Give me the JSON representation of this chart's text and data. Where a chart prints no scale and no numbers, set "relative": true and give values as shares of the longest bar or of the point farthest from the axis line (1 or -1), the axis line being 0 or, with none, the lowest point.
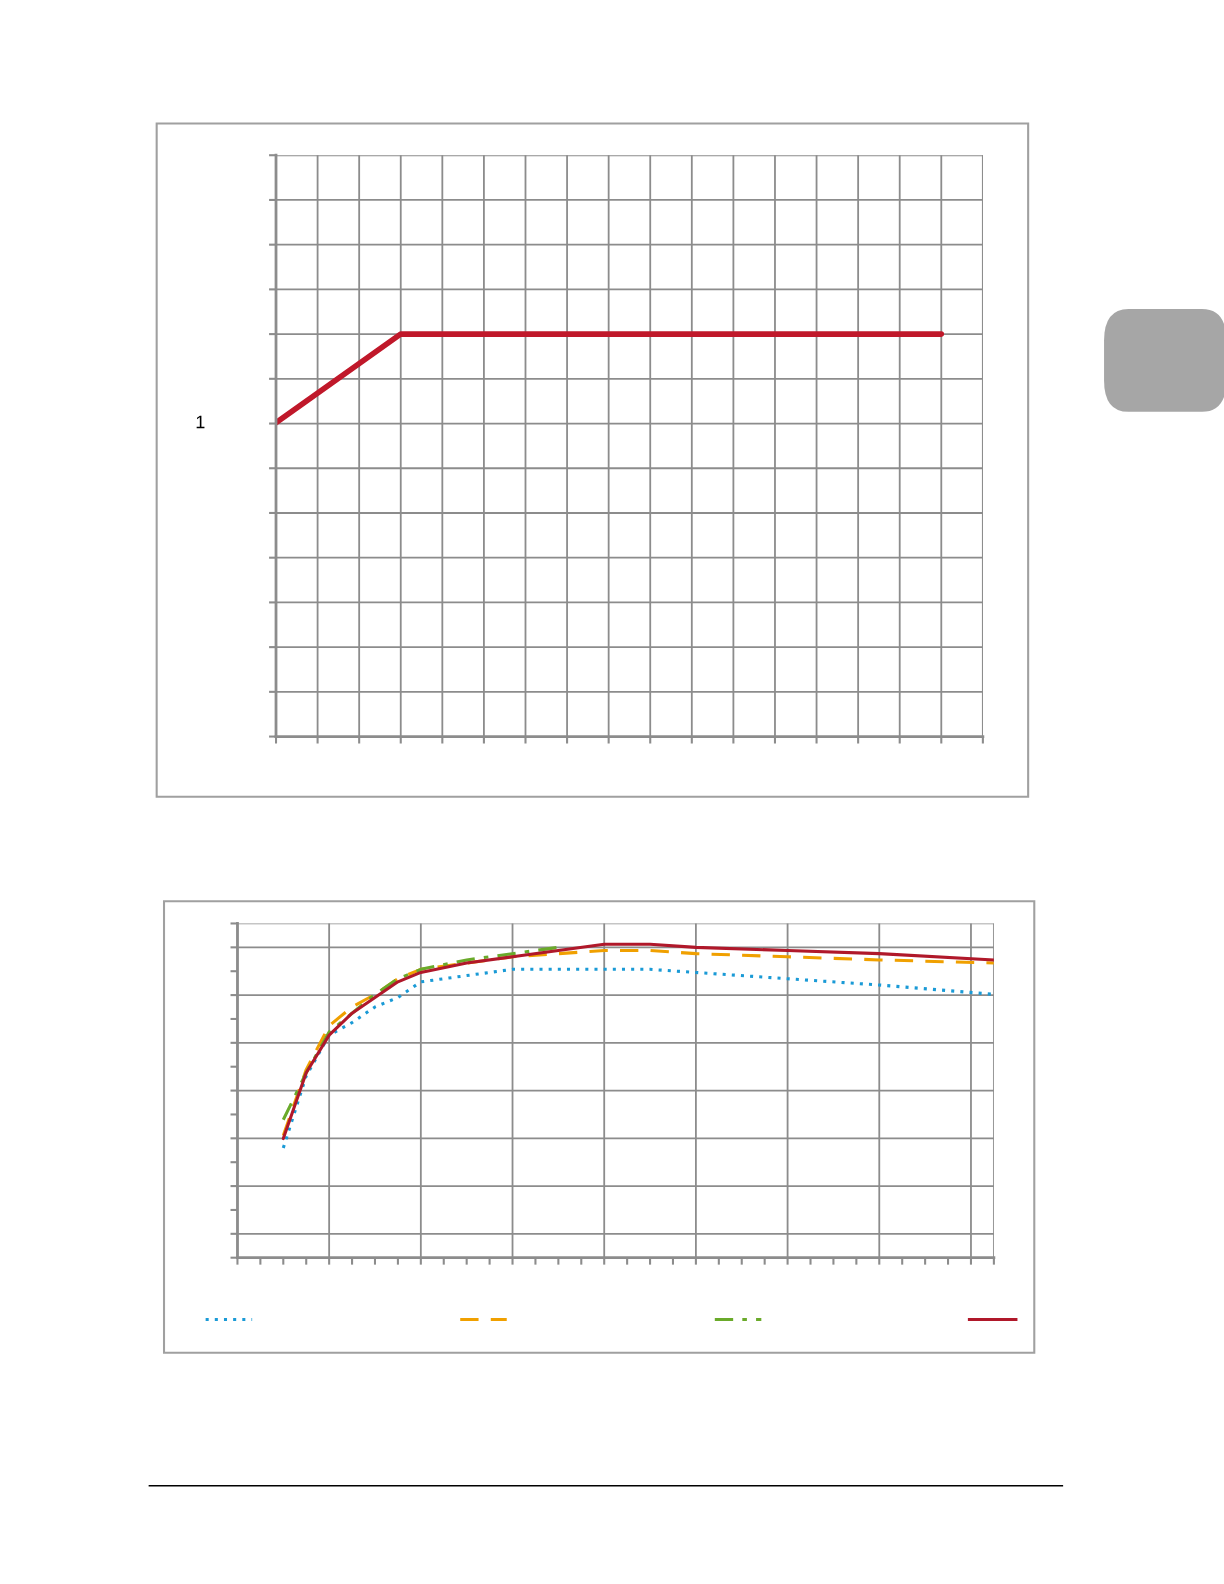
{
  "chart_data": [
    {
      "type": "line",
      "relative": true,
      "annotations": [
        "1"
      ],
      "grid": true,
      "legend": false,
      "categories": [
        null,
        null,
        null,
        null,
        null,
        null,
        null,
        null,
        null,
        null,
        null,
        null,
        null,
        null,
        null,
        null,
        null,
        null
      ],
      "series": [
        {
          "color": "#c0182a",
          "line_style": "solid",
          "values": [
            0.78,
            null,
            null,
            1,
            null,
            null,
            null,
            null,
            null,
            null,
            null,
            null,
            null,
            null,
            null,
            null,
            1,
            null
          ]
        }
      ]
    },
    {
      "type": "line",
      "relative": true,
      "grid": true,
      "categories": [
        null,
        null,
        null,
        null,
        null,
        null,
        null,
        null,
        null,
        null,
        null,
        null,
        null,
        null,
        null,
        null,
        null,
        null,
        null,
        null,
        null,
        null,
        null,
        null,
        null,
        null,
        null,
        null,
        null,
        null,
        null,
        null,
        null,
        null
      ],
      "series": [
        {
          "color": "#1a9ad6",
          "line_style": "dotted",
          "values": [
            null,
            null,
            0.35,
            0.58,
            0.71,
            0.75,
            0.8,
            0.83,
            0.88,
            null,
            0.9,
            null,
            0.92,
            null,
            0.92,
            null,
            0.92,
            null,
            0.92,
            null,
            0.91,
            null,
            null,
            null,
            0.89,
            null,
            null,
            null,
            0.87,
            null,
            null,
            null,
            null,
            0.84
          ]
        },
        {
          "color": "#f0a000",
          "line_style": "dashed",
          "values": [
            null,
            null,
            0.39,
            0.6,
            0.74,
            0.8,
            0.84,
            0.89,
            0.92,
            null,
            0.94,
            null,
            0.96,
            null,
            0.97,
            null,
            0.98,
            null,
            0.98,
            null,
            0.97,
            null,
            null,
            null,
            0.96,
            null,
            null,
            null,
            0.95,
            null,
            null,
            null,
            null,
            0.94
          ]
        },
        {
          "color": "#6aaa2a",
          "line_style": "dashdot",
          "values": [
            null,
            null,
            0.44,
            0.59,
            0.72,
            0.78,
            0.84,
            0.89,
            0.92,
            null,
            0.95,
            null,
            0.97,
            null,
            0.99,
            null,
            null,
            null,
            null,
            null,
            null,
            null,
            null,
            null,
            null,
            null,
            null,
            null,
            null,
            null,
            null,
            null,
            null,
            null
          ]
        },
        {
          "color": "#b0182a",
          "line_style": "solid",
          "values": [
            null,
            null,
            0.38,
            0.59,
            0.71,
            0.78,
            0.83,
            0.88,
            0.91,
            null,
            0.94,
            null,
            0.96,
            null,
            0.98,
            null,
            1.0,
            null,
            1.0,
            null,
            0.99,
            null,
            null,
            null,
            0.98,
            null,
            null,
            null,
            0.97,
            null,
            null,
            null,
            null,
            0.95
          ]
        }
      ]
    }
  ]
}
